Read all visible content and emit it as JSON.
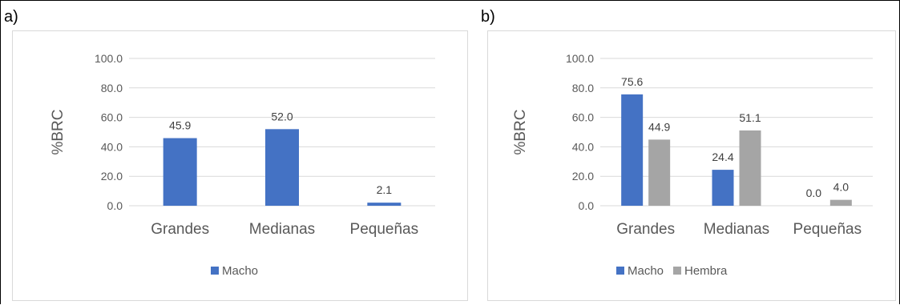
{
  "panels": [
    {
      "label": "a)"
    },
    {
      "label": "b)"
    }
  ],
  "colors": {
    "macho": "#4472c4",
    "hembra": "#a5a5a5",
    "grid": "#d9d9d9",
    "text": "#595959"
  },
  "chart_data": [
    {
      "type": "bar",
      "title": "",
      "xlabel": "",
      "ylabel": "%BRC",
      "ylim": [
        0,
        100
      ],
      "yticks": [
        "0.0",
        "20.0",
        "40.0",
        "60.0",
        "80.0",
        "100.0"
      ],
      "grid": true,
      "legend_position": "bottom",
      "categories": [
        "Grandes",
        "Medianas",
        "Pequeñas"
      ],
      "series": [
        {
          "name": "Macho",
          "values": [
            45.9,
            52.0,
            2.1
          ],
          "labels": [
            "45.9",
            "52.0",
            "2.1"
          ],
          "color": "#4472c4"
        }
      ]
    },
    {
      "type": "bar",
      "title": "",
      "xlabel": "",
      "ylabel": "%BRC",
      "ylim": [
        0,
        100
      ],
      "yticks": [
        "0.0",
        "20.0",
        "40.0",
        "60.0",
        "80.0",
        "100.0"
      ],
      "grid": true,
      "legend_position": "bottom",
      "categories": [
        "Grandes",
        "Medianas",
        "Pequeñas"
      ],
      "series": [
        {
          "name": "Macho",
          "values": [
            75.6,
            24.4,
            0.0
          ],
          "labels": [
            "75.6",
            "24.4",
            "0.0"
          ],
          "color": "#4472c4"
        },
        {
          "name": "Hembra",
          "values": [
            44.9,
            51.1,
            4.0
          ],
          "labels": [
            "44.9",
            "51.1",
            "4.0"
          ],
          "color": "#a5a5a5"
        }
      ]
    }
  ]
}
